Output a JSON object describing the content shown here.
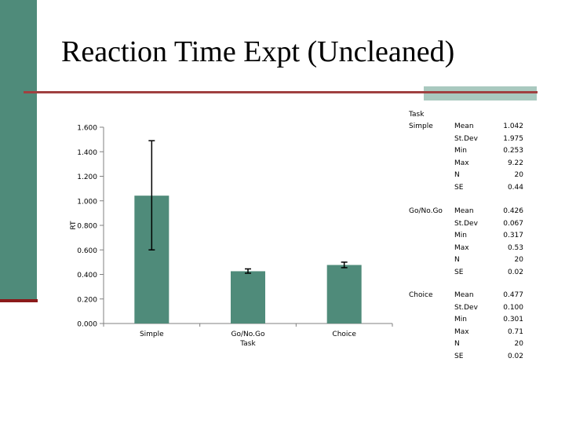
{
  "slide": {
    "title": "Reaction Time Expt (Uncleaned)"
  },
  "colors": {
    "bar": "#4f8b7a",
    "sidebar": "#4f8b7a",
    "accent_rule": "#a04040",
    "accent_block": "#a9c9bf"
  },
  "chart_data": {
    "type": "bar",
    "xlabel": "Task",
    "ylabel": "RT",
    "ylim": [
      0,
      1.6
    ],
    "y_ticks": [
      "0.000",
      "0.200",
      "0.400",
      "0.600",
      "0.800",
      "1.000",
      "1.200",
      "1.400",
      "1.600"
    ],
    "categories": [
      "Simple",
      "Go/No.Go",
      "Choice"
    ],
    "values": [
      1.042,
      0.426,
      0.477
    ],
    "error_bars": [
      {
        "low": 0.6,
        "high": 1.49
      },
      {
        "low": 0.41,
        "high": 0.445
      },
      {
        "low": 0.455,
        "high": 0.5
      }
    ],
    "grid": false,
    "legend": "none"
  },
  "stats_table": {
    "header": "Task",
    "groups": [
      {
        "task": "Simple",
        "rows": [
          {
            "label": "Mean",
            "value": "1.042"
          },
          {
            "label": "St.Dev",
            "value": "1.975"
          },
          {
            "label": "Min",
            "value": "0.253"
          },
          {
            "label": "Max",
            "value": "9.22"
          },
          {
            "label": "N",
            "value": "20"
          },
          {
            "label": "SE",
            "value": "0.44"
          }
        ]
      },
      {
        "task": "Go/No.Go",
        "rows": [
          {
            "label": "Mean",
            "value": "0.426"
          },
          {
            "label": "St.Dev",
            "value": "0.067"
          },
          {
            "label": "Min",
            "value": "0.317"
          },
          {
            "label": "Max",
            "value": "0.53"
          },
          {
            "label": "N",
            "value": "20"
          },
          {
            "label": "SE",
            "value": "0.02"
          }
        ]
      },
      {
        "task": "Choice",
        "rows": [
          {
            "label": "Mean",
            "value": "0.477"
          },
          {
            "label": "St.Dev",
            "value": "0.100"
          },
          {
            "label": "Min",
            "value": "0.301"
          },
          {
            "label": "Max",
            "value": "0.71"
          },
          {
            "label": "N",
            "value": "20"
          },
          {
            "label": "SE",
            "value": "0.02"
          }
        ]
      }
    ]
  }
}
